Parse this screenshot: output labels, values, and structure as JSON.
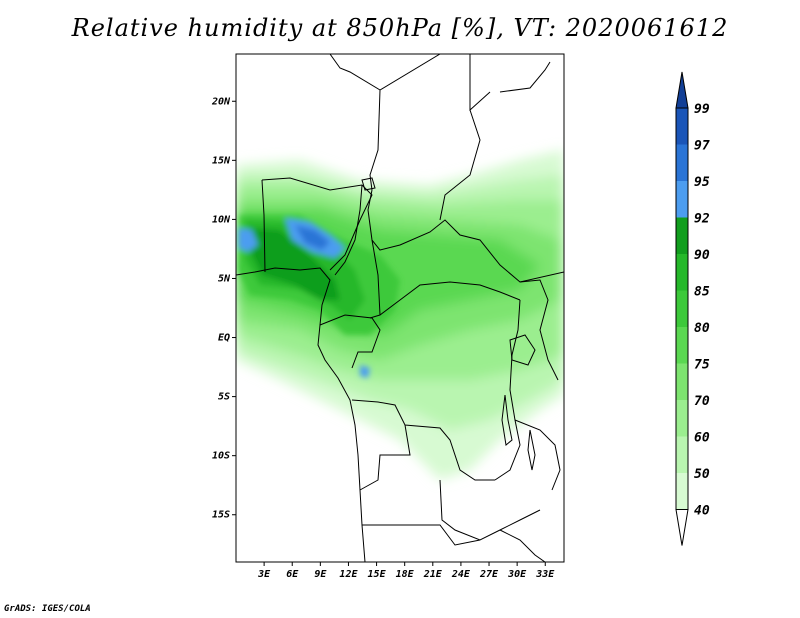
{
  "title": "Relative humidity at 850hPa [%], VT: 2020061612",
  "credit": "GrADS: IGES/COLA",
  "map": {
    "lat_range": [
      -19,
      24
    ],
    "lon_range": [
      0,
      35
    ],
    "lat_ticks": [
      {
        "value": 20,
        "label": "20N"
      },
      {
        "value": 15,
        "label": "15N"
      },
      {
        "value": 10,
        "label": "10N"
      },
      {
        "value": 5,
        "label": "5N"
      },
      {
        "value": 0,
        "label": "EQ"
      },
      {
        "value": -5,
        "label": "5S"
      },
      {
        "value": -10,
        "label": "10S"
      },
      {
        "value": -15,
        "label": "15S"
      }
    ],
    "lon_ticks": [
      {
        "value": 3,
        "label": "3E"
      },
      {
        "value": 6,
        "label": "6E"
      },
      {
        "value": 9,
        "label": "9E"
      },
      {
        "value": 12,
        "label": "12E"
      },
      {
        "value": 15,
        "label": "15E"
      },
      {
        "value": 18,
        "label": "18E"
      },
      {
        "value": 21,
        "label": "21E"
      },
      {
        "value": 24,
        "label": "24E"
      },
      {
        "value": 27,
        "label": "27E"
      },
      {
        "value": 30,
        "label": "30E"
      },
      {
        "value": 33,
        "label": "33E"
      }
    ]
  },
  "colorbar": {
    "levels": [
      "40",
      "50",
      "60",
      "70",
      "75",
      "80",
      "85",
      "90",
      "92",
      "95",
      "97",
      "99"
    ],
    "colors": [
      "#f0fff0",
      "#d7fad2",
      "#b9f5b0",
      "#9bee8f",
      "#7de46f",
      "#5ad851",
      "#3cc93a",
      "#25b82a",
      "#119e1e",
      "#4c9df0",
      "#2a74d6",
      "#1a55b8",
      "#123f96"
    ]
  }
}
